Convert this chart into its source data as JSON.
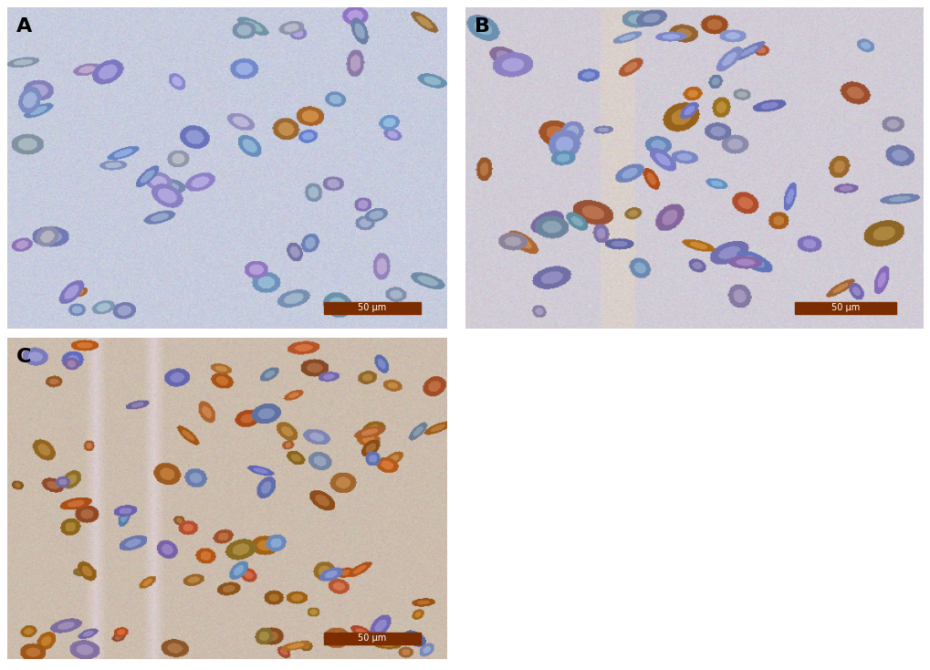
{
  "figure_bg": "#ffffff",
  "panel_labels": [
    "A",
    "B",
    "C"
  ],
  "scale_bar_text": "50 μm",
  "scale_bar_color": "#7B2D00",
  "label_fontsize": 16,
  "scale_fontsize": 7,
  "panel_A_bg": "#c8cfe0",
  "panel_B_bg": "#c8cdd8",
  "panel_C_bg": "#c4bfb0",
  "layout": {
    "A": [
      0,
      1,
      0,
      1
    ],
    "B": [
      1,
      2,
      0,
      1
    ],
    "C": [
      0,
      1,
      1,
      2
    ]
  }
}
